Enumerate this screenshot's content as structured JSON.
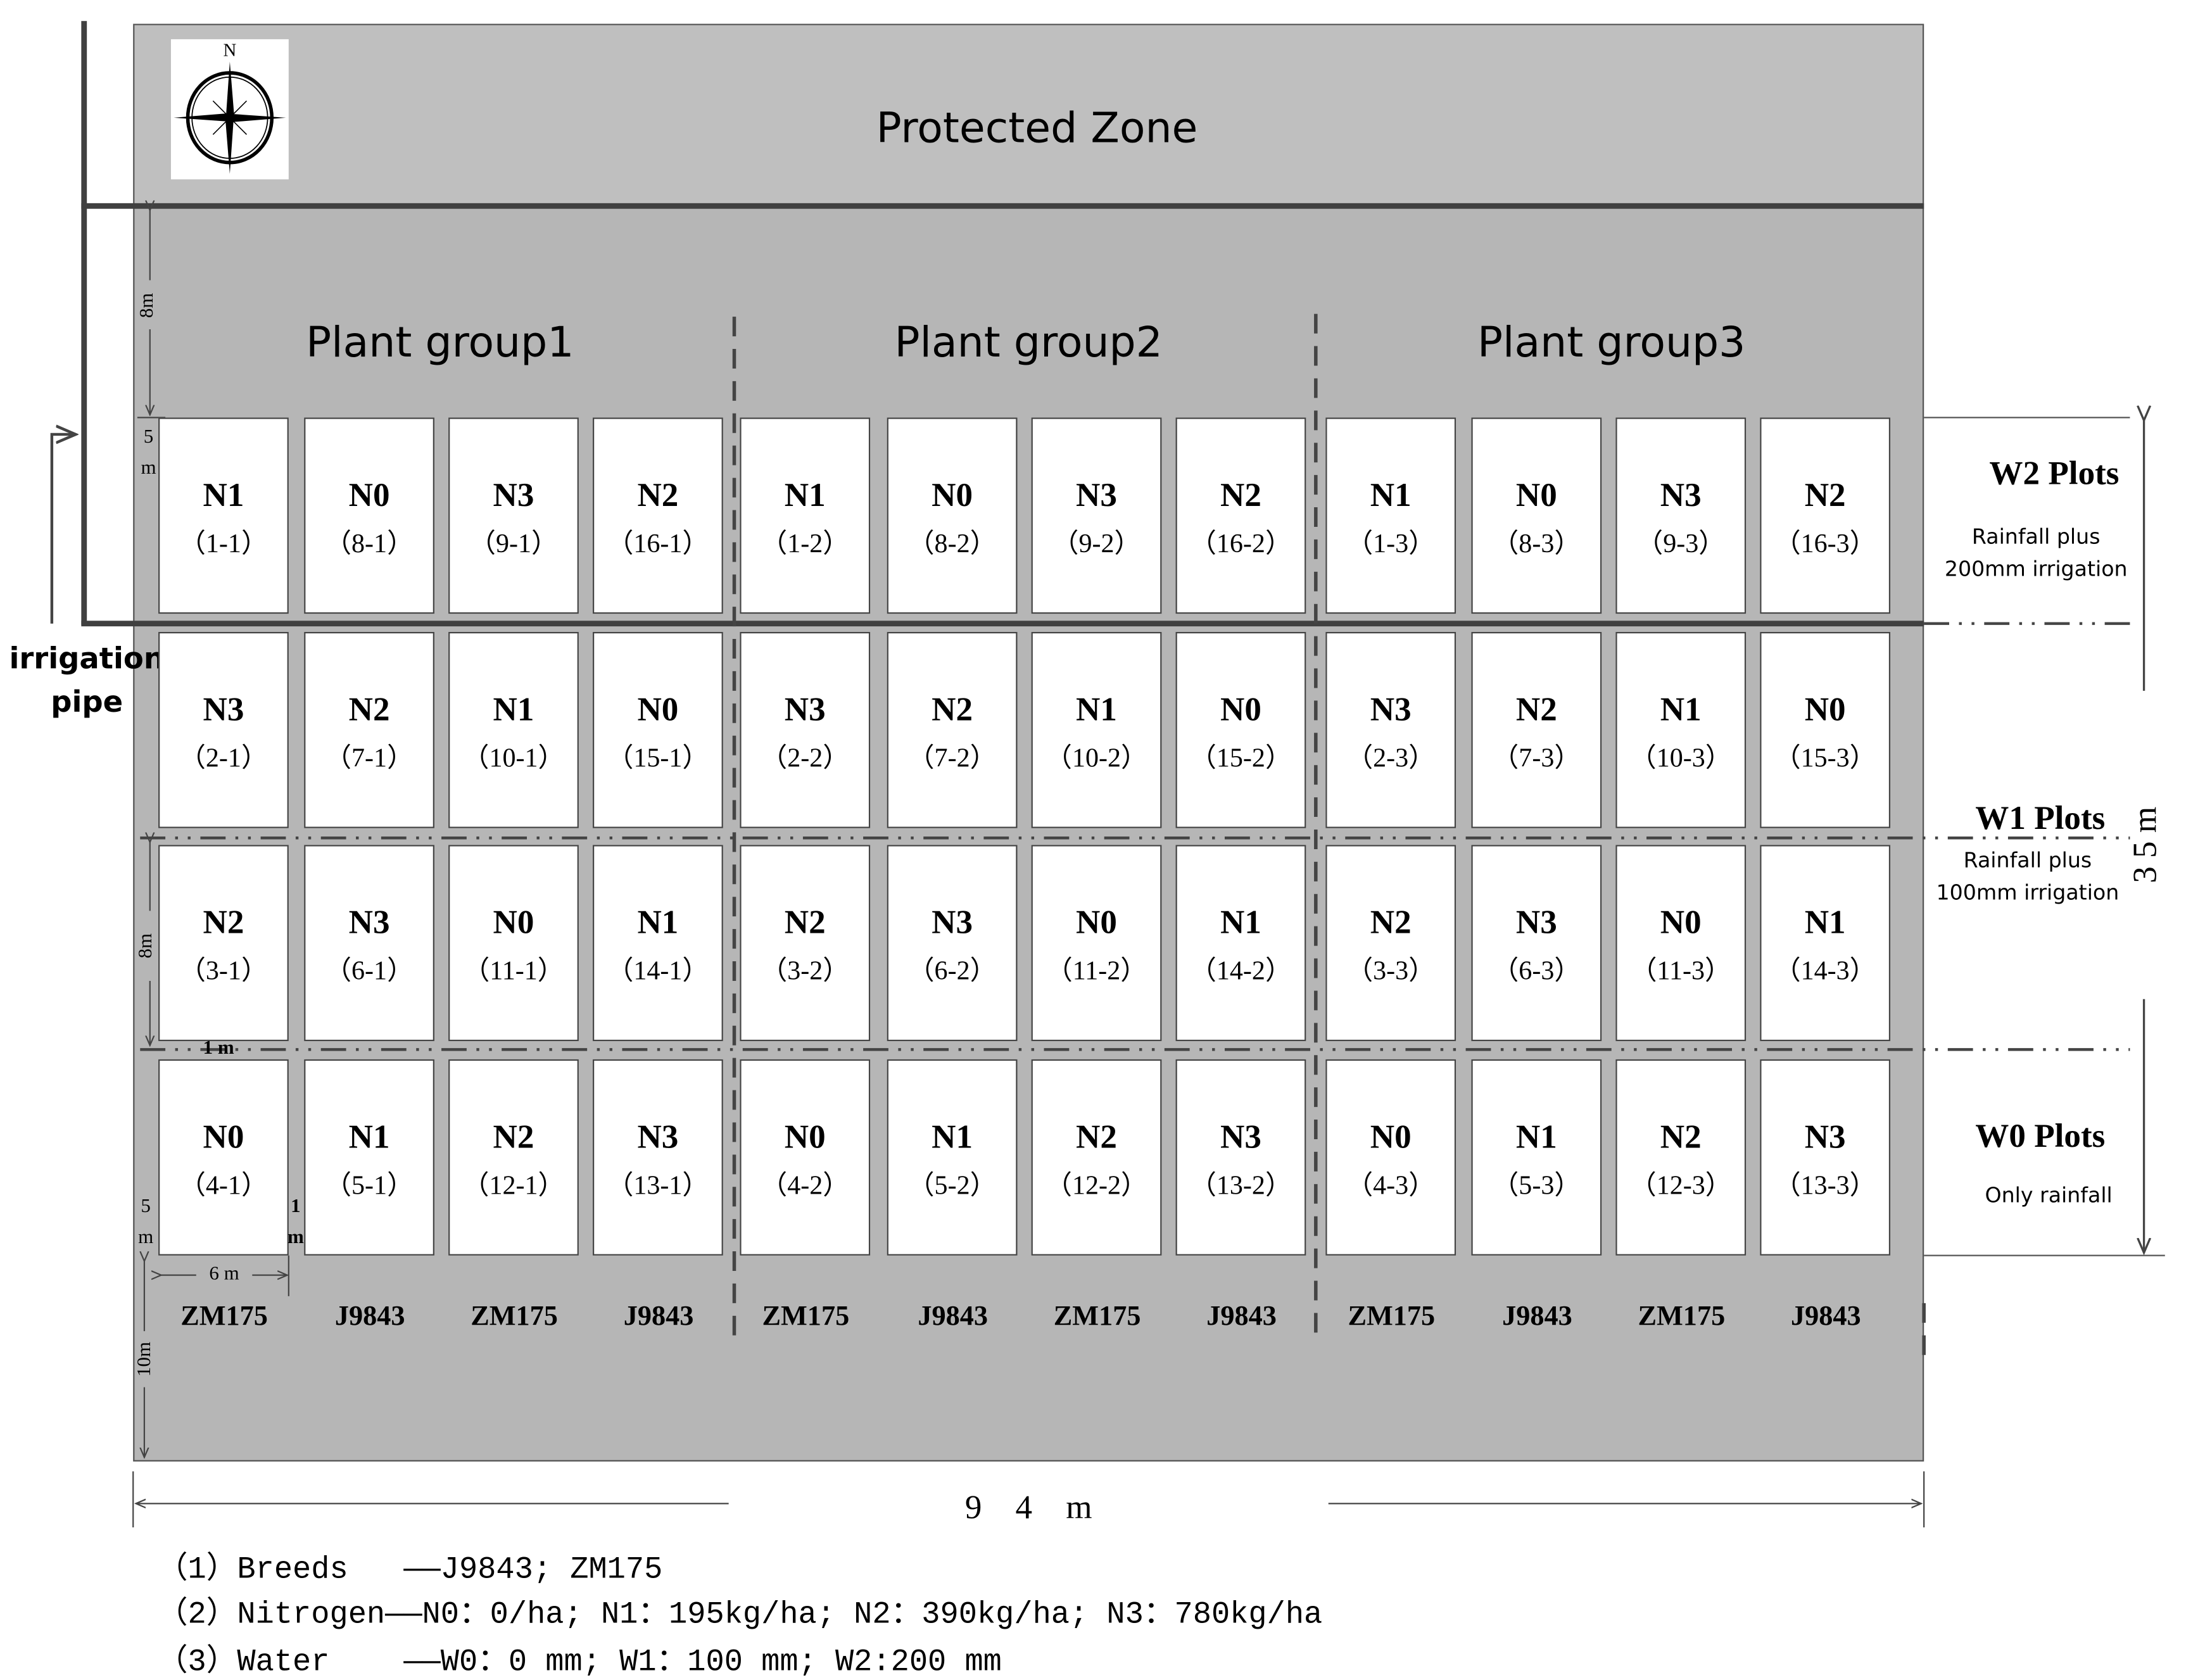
{
  "protected_zone": "Protected Zone",
  "compass_letter": "N",
  "plant_groups": [
    "Plant group1",
    "Plant group2",
    "Plant group3"
  ],
  "irrigation_pipe": [
    "irrigation",
    "pipe"
  ],
  "plot_rows": [
    {
      "n": [
        "N1",
        "N0",
        "N3",
        "N2",
        "N1",
        "N0",
        "N3",
        "N2",
        "N1",
        "N0",
        "N3",
        "N2"
      ],
      "id": [
        "（1-1）",
        "（8-1）",
        "（9-1）",
        "（16-1）",
        "（1-2）",
        "（8-2）",
        "（9-2）",
        "（16-2）",
        "（1-3）",
        "（8-3）",
        "（9-3）",
        "（16-3）"
      ]
    },
    {
      "n": [
        "N3",
        "N2",
        "N1",
        "N0",
        "N3",
        "N2",
        "N1",
        "N0",
        "N3",
        "N2",
        "N1",
        "N0"
      ],
      "id": [
        "（2-1）",
        "（7-1）",
        "（10-1）",
        "（15-1）",
        "（2-2）",
        "（7-2）",
        "（10-2）",
        "（15-2）",
        "（2-3）",
        "（7-3）",
        "（10-3）",
        "（15-3）"
      ]
    },
    {
      "n": [
        "N2",
        "N3",
        "N0",
        "N1",
        "N2",
        "N3",
        "N0",
        "N1",
        "N2",
        "N3",
        "N0",
        "N1"
      ],
      "id": [
        "（3-1）",
        "（6-1）",
        "（11-1）",
        "（14-1）",
        "（3-2）",
        "（6-2）",
        "（11-2）",
        "（14-2）",
        "（3-3）",
        "（6-3）",
        "（11-3）",
        "（14-3）"
      ]
    },
    {
      "n": [
        "N0",
        "N1",
        "N2",
        "N3",
        "N0",
        "N1",
        "N2",
        "N3",
        "N0",
        "N1",
        "N2",
        "N3"
      ],
      "id": [
        "（4-1）",
        "（5-1）",
        "（12-1）",
        "（13-1）",
        "（4-2）",
        "（5-2）",
        "（12-2）",
        "（13-2）",
        "（4-3）",
        "（5-3）",
        "（12-3）",
        "（13-3）"
      ]
    }
  ],
  "breeds": [
    "ZM175",
    "J9843",
    "ZM175",
    "J9843",
    "ZM175",
    "J9843",
    "ZM175",
    "J9843",
    "ZM175",
    "J9843",
    "ZM175",
    "J9843"
  ],
  "water_plots": [
    {
      "title": "W2 Plots",
      "desc": [
        "Rainfall plus",
        "200mm irrigation"
      ]
    },
    {
      "title": "W1 Plots",
      "desc": [
        "Rainfall plus",
        "100mm irrigation"
      ]
    },
    {
      "title": "W0 Plots",
      "desc": [
        "Only rainfall"
      ]
    }
  ],
  "dimensions": {
    "top_gap": "8m",
    "plot_height_1": "5 m",
    "mid_gap": "8m",
    "row_gap": "1 m",
    "plot_height_2": "5 m",
    "col_gap": "1 m",
    "plot_width": "6 m",
    "bottom_gap": "10m",
    "total_width": "9　4　m",
    "total_height": "3 5 m"
  },
  "legend": [
    "（1）Breeds   ——J9843; ZM175",
    "（2）Nitrogen——N0：0/ha; N1：195kg/ha; N2：390kg/ha; N3：780kg/ha",
    "（3）Water    ——W0：0 mm; W1：100 mm; W2:200 mm"
  ],
  "colors": {
    "field": "#b8b8b8",
    "protected": "#bfbfbf",
    "line": "#404040"
  }
}
